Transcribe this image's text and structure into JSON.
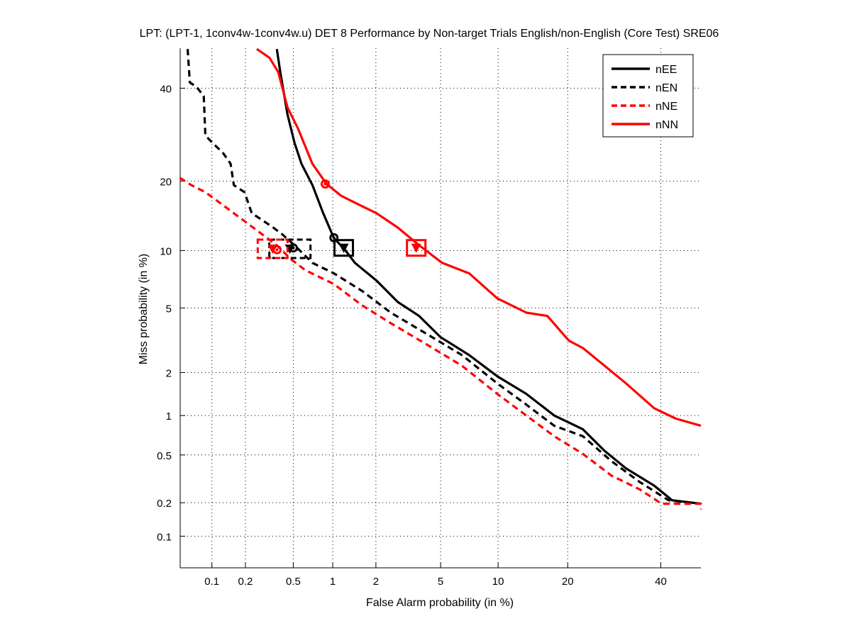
{
  "chart_data": {
    "type": "line",
    "scale": "normal-deviate",
    "title": "LPT: (LPT-1, 1conv4w-1conv4w.u) DET 8 Performance by Non-target Trials English/non-English (Core Test) SRE06",
    "xlabel": "False Alarm probability (in %)",
    "ylabel": "Miss probability (in %)",
    "xlim": [
      0.05,
      50
    ],
    "ylim": [
      0.05,
      50
    ],
    "grid": true,
    "x_ticks": [
      {
        "value": 0.1,
        "label": "0.1"
      },
      {
        "value": 0.2,
        "label": "0.2"
      },
      {
        "value": 0.5,
        "label": "0.5"
      },
      {
        "value": 1,
        "label": "1"
      },
      {
        "value": 2,
        "label": "2"
      },
      {
        "value": 5,
        "label": "5"
      },
      {
        "value": 10,
        "label": "10"
      },
      {
        "value": 20,
        "label": "20"
      },
      {
        "value": 40,
        "label": "40"
      }
    ],
    "y_ticks": [
      {
        "value": 0.1,
        "label": "0.1"
      },
      {
        "value": 0.2,
        "label": "0.2"
      },
      {
        "value": 0.5,
        "label": "0.5"
      },
      {
        "value": 1,
        "label": "1"
      },
      {
        "value": 2,
        "label": "2"
      },
      {
        "value": 5,
        "label": "5"
      },
      {
        "value": 10,
        "label": "10"
      },
      {
        "value": 20,
        "label": "20"
      },
      {
        "value": 40,
        "label": "40"
      }
    ],
    "legend_position": "top-right",
    "series": [
      {
        "name": "nEE",
        "color": "#000000",
        "dash": "solid",
        "x": [
          0.368,
          0.393,
          0.449,
          0.511,
          0.58,
          0.705,
          0.85,
          1.02,
          1.21,
          1.44,
          2.02,
          2.77,
          3.75,
          5.0,
          7.15,
          9.9,
          13.5,
          17.7,
          22.8,
          27.1,
          31.8,
          38.4,
          42.8,
          50
        ],
        "y": [
          49.8,
          44.0,
          33.8,
          27.5,
          23.2,
          19.3,
          14.8,
          11.45,
          10.2,
          8.7,
          7.05,
          5.4,
          4.5,
          3.36,
          2.6,
          1.89,
          1.43,
          1.0,
          0.79,
          0.54,
          0.39,
          0.28,
          0.21,
          0.196
        ],
        "markers": {
          "circle": [
            1.02,
            11.5
          ],
          "box": [
            1.2,
            10.3
          ]
        }
      },
      {
        "name": "nEN",
        "color": "#000000",
        "dash": "dashed",
        "x": [
          0.059,
          0.062,
          0.072,
          0.084,
          0.087,
          0.101,
          0.127,
          0.148,
          0.158,
          0.196,
          0.227,
          0.28,
          0.344,
          0.41,
          0.511,
          0.705,
          1.02,
          1.62,
          2.5,
          4.14,
          6.55,
          9.9,
          13.5,
          17.7,
          22.8,
          28.6,
          35.0,
          41.9,
          50
        ],
        "y": [
          49.8,
          41.4,
          40.3,
          38.1,
          29.0,
          27.5,
          25.3,
          23.2,
          19.3,
          18.1,
          14.8,
          13.8,
          12.8,
          11.9,
          10.6,
          8.7,
          7.7,
          6.2,
          4.7,
          3.53,
          2.6,
          1.69,
          1.2,
          0.84,
          0.7,
          0.446,
          0.3,
          0.21,
          0.196
        ],
        "markers": {
          "circle": [
            0.5,
            10.3
          ],
          "box": [
            0.47,
            10.2
          ]
        }
      },
      {
        "name": "nNE",
        "color": "#ff0000",
        "dash": "dashed",
        "x": [
          0.0495,
          0.064,
          0.087,
          0.118,
          0.158,
          0.211,
          0.28,
          0.368,
          0.48,
          0.62,
          1.02,
          1.62,
          2.5,
          4.14,
          6.55,
          9.9,
          13.5,
          17.7,
          22.8,
          28.6,
          35.0,
          40.2,
          50,
          50
        ],
        "y": [
          20.6,
          19.3,
          18.1,
          16.4,
          14.8,
          13.3,
          11.9,
          10.6,
          9.06,
          8.0,
          6.76,
          5.16,
          4.08,
          3.04,
          2.22,
          1.43,
          1.0,
          0.7,
          0.51,
          0.34,
          0.26,
          0.196,
          0.196,
          0.175
        ],
        "markers": {
          "circle": [
            0.37,
            10.1
          ],
          "box": [
            0.34,
            10.2
          ]
        }
      },
      {
        "name": "nNN",
        "color": "#ff0000",
        "dash": "solid",
        "x": [
          0.25,
          0.32,
          0.378,
          0.449,
          0.546,
          0.705,
          0.9,
          1.15,
          1.44,
          2.02,
          2.77,
          3.75,
          5.1,
          7.15,
          9.9,
          13.5,
          16.6,
          20.2,
          22.8,
          27.1,
          31.8,
          38.4,
          43.7,
          50
        ],
        "y": [
          49.8,
          47.6,
          44.0,
          35.4,
          30.5,
          23.2,
          19.5,
          17.5,
          16.4,
          14.8,
          12.8,
          10.6,
          8.7,
          7.7,
          5.66,
          4.7,
          4.5,
          3.2,
          2.88,
          2.22,
          1.69,
          1.13,
          0.95,
          0.84
        ],
        "markers": {
          "circle": [
            0.88,
            19.5
          ],
          "box": [
            3.6,
            10.3
          ]
        }
      }
    ]
  }
}
